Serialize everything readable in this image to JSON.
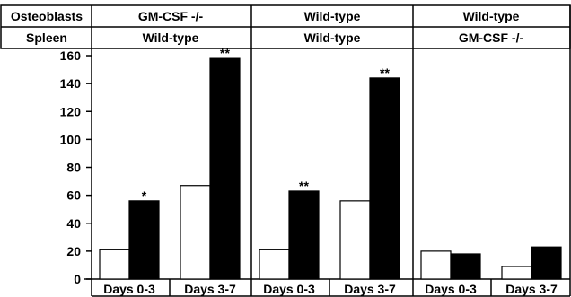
{
  "header": {
    "row1_label": "Osteoblasts",
    "row2_label": "Spleen",
    "panels": [
      {
        "osteoblasts": "GM-CSF -/-",
        "spleen": "Wild-type"
      },
      {
        "osteoblasts": "Wild-type",
        "spleen": "Wild-type"
      },
      {
        "osteoblasts": "Wild-type",
        "spleen": "GM-CSF -/-"
      }
    ]
  },
  "chart_data": {
    "type": "bar",
    "ylim": [
      0,
      160
    ],
    "yticks": [
      0,
      20,
      40,
      60,
      80,
      100,
      120,
      140,
      160
    ],
    "grid": false,
    "legend": "none",
    "colors": {
      "open": "#ffffff",
      "filled": "#000000"
    },
    "panels": [
      {
        "groups": [
          {
            "label": "Days 0-3",
            "values": [
              21,
              56
            ],
            "annotations": [
              "",
              "*"
            ]
          },
          {
            "label": "Days 3-7",
            "values": [
              67,
              158
            ],
            "annotations": [
              "",
              "**"
            ]
          }
        ]
      },
      {
        "groups": [
          {
            "label": "Days 0-3",
            "values": [
              21,
              63
            ],
            "annotations": [
              "",
              "**"
            ]
          },
          {
            "label": "Days 3-7",
            "values": [
              56,
              144
            ],
            "annotations": [
              "",
              "**"
            ]
          }
        ]
      },
      {
        "groups": [
          {
            "label": "Days 0-3",
            "values": [
              20,
              18
            ],
            "annotations": [
              "",
              ""
            ]
          },
          {
            "label": "Days 3-7",
            "values": [
              9,
              23
            ],
            "annotations": [
              "",
              ""
            ]
          }
        ]
      }
    ]
  }
}
